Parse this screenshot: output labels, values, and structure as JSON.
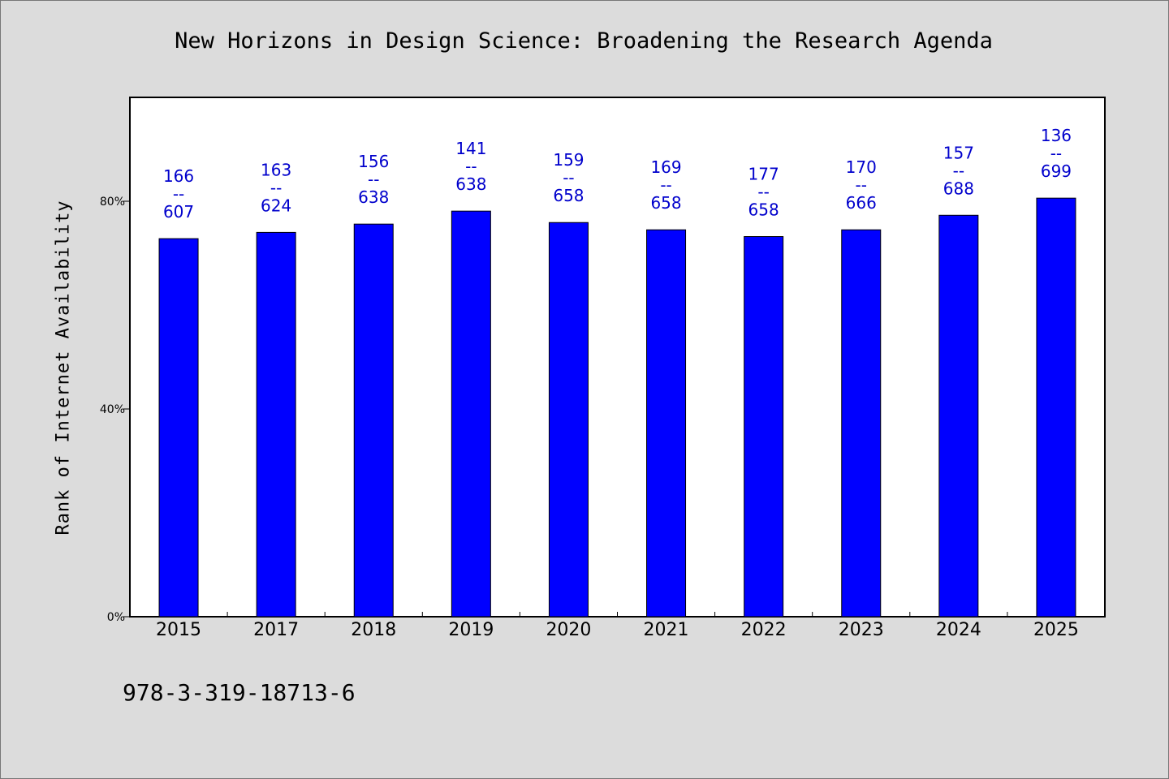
{
  "chart_data": {
    "type": "bar",
    "title": "New Horizons in Design Science: Broadening the Research Agenda",
    "ylabel": "Rank of Internet Availability",
    "xlabel": "",
    "ylim": [
      0,
      100
    ],
    "y_ticks": [
      0,
      40,
      80
    ],
    "y_tick_labels": [
      "0%",
      "40%",
      "80%"
    ],
    "categories": [
      "2015",
      "2017",
      "2018",
      "2019",
      "2020",
      "2021",
      "2022",
      "2023",
      "2024",
      "2025"
    ],
    "values": [
      72.8,
      74.0,
      75.6,
      78.1,
      75.9,
      74.5,
      73.2,
      74.5,
      77.3,
      80.6
    ],
    "data_labels": [
      [
        "166",
        "--",
        "607"
      ],
      [
        "163",
        "--",
        "624"
      ],
      [
        "156",
        "--",
        "638"
      ],
      [
        "141",
        "--",
        "638"
      ],
      [
        "159",
        "--",
        "658"
      ],
      [
        "169",
        "--",
        "658"
      ],
      [
        "177",
        "--",
        "658"
      ],
      [
        "170",
        "--",
        "666"
      ],
      [
        "157",
        "--",
        "688"
      ],
      [
        "136",
        "--",
        "699"
      ]
    ],
    "bar_color": "#0000ff",
    "label_color": "#0000cc",
    "grid": false,
    "legend": "none"
  },
  "footer": {
    "isbn": "978-3-319-18713-6"
  }
}
